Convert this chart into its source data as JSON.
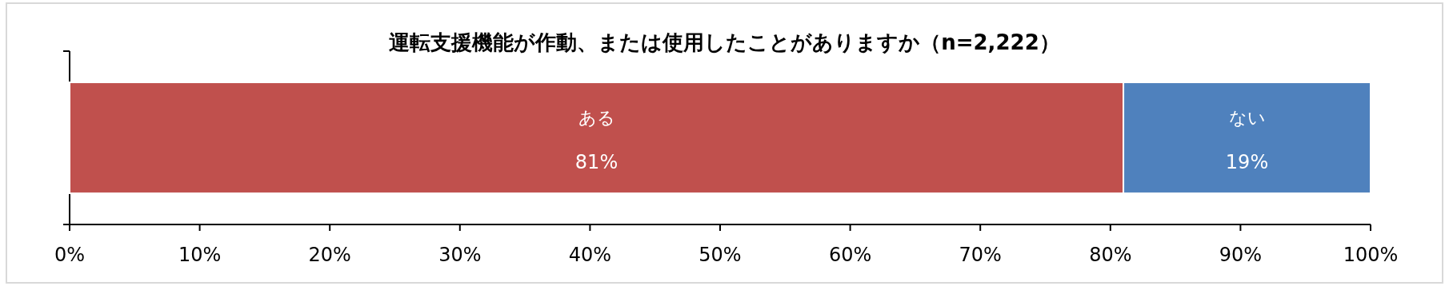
{
  "chart_data": {
    "type": "bar",
    "title": "運転支援機能が作動、または使用したことがありますか（n=2,222）",
    "orientation": "horizontal",
    "stacked": true,
    "categories": [
      null
    ],
    "series": [
      {
        "name": "ある",
        "color": "#c0504d",
        "values": [
          81
        ],
        "value_labels": [
          "81%"
        ]
      },
      {
        "name": "ない",
        "color": "#4f81bd",
        "values": [
          19
        ],
        "value_labels": [
          "19%"
        ]
      }
    ],
    "xlim": [
      0,
      100
    ],
    "xticks": [
      {
        "value": 0,
        "label": "0%"
      },
      {
        "value": 10,
        "label": "10%"
      },
      {
        "value": 20,
        "label": "20%"
      },
      {
        "value": 30,
        "label": "30%"
      },
      {
        "value": 40,
        "label": "40%"
      },
      {
        "value": 50,
        "label": "50%"
      },
      {
        "value": 60,
        "label": "60%"
      },
      {
        "value": 70,
        "label": "70%"
      },
      {
        "value": 80,
        "label": "80%"
      },
      {
        "value": 90,
        "label": "90%"
      },
      {
        "value": 100,
        "label": "100%"
      }
    ]
  }
}
